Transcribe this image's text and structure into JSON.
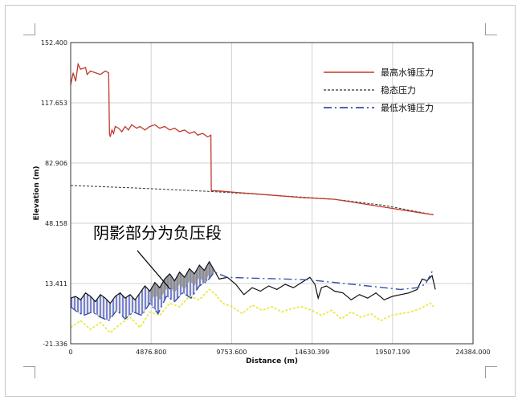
{
  "chart_data": {
    "type": "line",
    "xlabel": "Distance (m)",
    "ylabel": "Elevation (m)",
    "xlim": [
      0,
      24384.0
    ],
    "ylim": [
      -21.336,
      152.4
    ],
    "x_ticks": [
      "0",
      "4876.800",
      "9753.600",
      "14630.399",
      "19507.199",
      "24384.000"
    ],
    "y_ticks": [
      "-21.336",
      "13.411",
      "48.158",
      "82.906",
      "117.653",
      "152.400"
    ],
    "grid": true,
    "legend_position": "top-right",
    "annotation": "阴影部分为负压段",
    "colors": {
      "max_pressure": "#c0392b",
      "steady_pressure": "#333333",
      "min_pressure": "#3a4fa8",
      "terrain": "#111111",
      "yellow_dashed": "#e9e94a",
      "shade": "#9e9e9e",
      "blue_fill": "#4759c9"
    },
    "series": [
      {
        "name": "最高水锤压力",
        "style": "solid",
        "x": [
          0,
          150,
          300,
          450,
          600,
          900,
          1000,
          1200,
          1500,
          1800,
          2100,
          2300,
          2350,
          2400,
          2500,
          2600,
          2700,
          2900,
          3100,
          3300,
          3500,
          3700,
          4000,
          4200,
          4500,
          4800,
          5100,
          5400,
          5700,
          6000,
          6300,
          6600,
          6900,
          7200,
          7500,
          7700,
          8000,
          8300,
          8500,
          8520,
          9000,
          10000,
          12000,
          14000,
          16000,
          18000,
          20000,
          21000,
          22000
        ],
        "y": [
          128,
          135,
          130,
          140,
          137,
          138,
          134,
          136,
          135,
          134,
          136,
          135,
          100,
          98,
          102,
          100,
          104,
          103,
          101,
          104,
          102,
          105,
          103,
          104,
          102,
          104,
          105,
          103,
          104,
          102,
          103,
          101,
          102,
          100,
          101,
          99,
          100,
          98,
          99,
          67,
          66.8,
          66,
          64.5,
          63,
          62,
          59,
          56,
          54.5,
          53
        ]
      },
      {
        "name": "稳态压力",
        "style": "dashed",
        "x": [
          0,
          4000,
          8500,
          12000,
          16000,
          19000,
          22000
        ],
        "y": [
          70,
          68.5,
          66.5,
          64.5,
          62,
          58.5,
          53
        ]
      },
      {
        "name": "最低水锤压力",
        "style": "dashdot",
        "x": [
          0,
          400,
          800,
          1300,
          1800,
          2300,
          2800,
          3300,
          3800,
          4300,
          4800,
          5300,
          5800,
          6300,
          6800,
          7300,
          7800,
          8300,
          8700,
          9500,
          11000,
          13000,
          14500,
          16000,
          18000,
          20000,
          21000,
          21500,
          22000
        ],
        "y": [
          0,
          -3,
          -5,
          -3,
          -6,
          -8,
          -2,
          -7,
          -3,
          -5,
          2,
          -4,
          6,
          3,
          8,
          5,
          12,
          15,
          20,
          17,
          16.5,
          16,
          15.5,
          14,
          12,
          10,
          11,
          13,
          22
        ]
      },
      {
        "name": "",
        "style": "terrain",
        "x": [
          0,
          300,
          600,
          900,
          1200,
          1500,
          1800,
          2100,
          2400,
          2700,
          3000,
          3300,
          3600,
          3900,
          4200,
          4500,
          4800,
          5100,
          5400,
          5700,
          6000,
          6300,
          6600,
          6900,
          7200,
          7500,
          7800,
          8100,
          8400,
          8700,
          9000,
          9500,
          10000,
          10500,
          11000,
          11500,
          12000,
          12500,
          13000,
          13500,
          14000,
          14500,
          14800,
          15000,
          15200,
          15500,
          16000,
          16500,
          17000,
          17500,
          18000,
          18500,
          19000,
          19500,
          20000,
          20500,
          21000,
          21300,
          21600,
          21900,
          22100
        ],
        "y": [
          5,
          6,
          4,
          8,
          6,
          3,
          7,
          5,
          2,
          6,
          8,
          5,
          7,
          4,
          8,
          12,
          9,
          14,
          11,
          16,
          19,
          15,
          20,
          17,
          22,
          19,
          24,
          21,
          26,
          21,
          16,
          17,
          13,
          7,
          11,
          9,
          12,
          10,
          13,
          11,
          14,
          17,
          13,
          5,
          11,
          12,
          9,
          8,
          4,
          7,
          5,
          8,
          4,
          6,
          7,
          8,
          10,
          16,
          15,
          18,
          10
        ]
      },
      {
        "name": "",
        "style": "yellow-dashed",
        "x": [
          0,
          600,
          1200,
          1800,
          2400,
          3000,
          3600,
          4200,
          4800,
          5400,
          6000,
          6600,
          7200,
          7800,
          8400,
          8800,
          9200,
          9800,
          10400,
          11000,
          11600,
          12200,
          12800,
          13400,
          14000,
          14600,
          15200,
          15800,
          16400,
          17000,
          17600,
          18200,
          18800,
          19400,
          20000,
          20600,
          21200,
          21800,
          22000
        ],
        "y": [
          -12,
          -8,
          -13,
          -9,
          -15,
          -10,
          -6,
          -12,
          -3,
          -5,
          2,
          0,
          6,
          4,
          10,
          7,
          2,
          0,
          -4,
          1,
          -2,
          0,
          -3,
          -1,
          0,
          -2,
          -5,
          -2,
          -7,
          -3,
          -6,
          -4,
          -8,
          -5,
          -4,
          -3,
          -1,
          2,
          0
        ]
      }
    ],
    "negative_pressure_x": [
      0,
      8700
    ]
  }
}
